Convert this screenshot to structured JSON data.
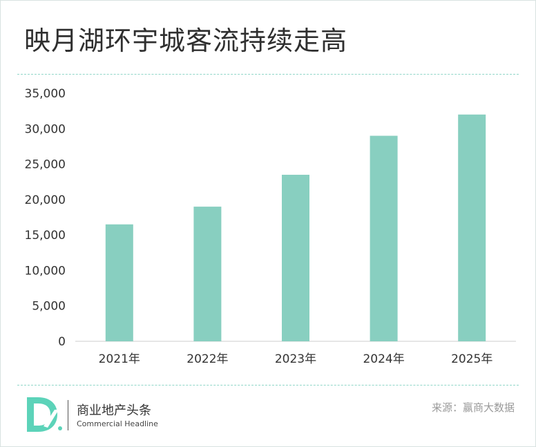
{
  "title": "映月湖环宇城客流持续走高",
  "colors": {
    "bar": "#88cfc0",
    "accent": "#5cd3b9",
    "axis": "#cccccc",
    "text": "#333333"
  },
  "chart_data": {
    "type": "bar",
    "title": "映月湖环宇城客流持续走高",
    "xlabel": "",
    "ylabel": "",
    "categories": [
      "2021年",
      "2022年",
      "2023年",
      "2024年",
      "2025年"
    ],
    "values": [
      16500,
      19000,
      23500,
      29000,
      32000
    ],
    "ylim": [
      0,
      35000
    ],
    "yticks": [
      "0",
      "5,000",
      "10,000",
      "15,000",
      "20,000",
      "25,000",
      "30,000",
      "35,000"
    ],
    "ytick_values": [
      0,
      5000,
      10000,
      15000,
      20000,
      25000,
      30000,
      35000
    ],
    "grid": false,
    "legend": "none"
  },
  "footer": {
    "logo_icon": "d-logo-icon",
    "brand_cn": "商业地产头条",
    "brand_en": "Commercial Headline",
    "source": "来源：赢商大数据"
  }
}
